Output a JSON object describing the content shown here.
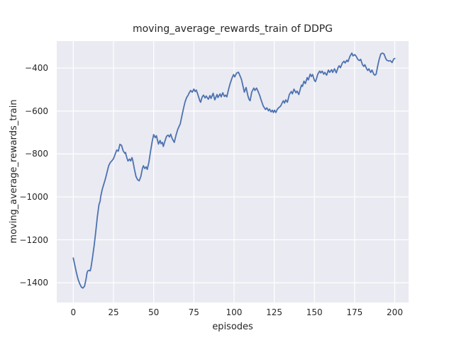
{
  "colors": {
    "figure_background": "#ffffff",
    "axes_background": "#eaeaf2",
    "grid": "#ffffff",
    "line": "#4c72b0",
    "text": "#262626"
  },
  "chart_data": {
    "type": "line",
    "title": "moving_average_rewards_train of DDPG",
    "xlabel": "episodes",
    "ylabel": "moving_average_rewards_train",
    "grid": true,
    "legend_position": "none",
    "xlim": [
      -10.3,
      208.6
    ],
    "ylim": [
      -1492,
      -274
    ],
    "xticks": [
      {
        "value": 0,
        "label": "0"
      },
      {
        "value": 25,
        "label": "25"
      },
      {
        "value": 50,
        "label": "50"
      },
      {
        "value": 75,
        "label": "75"
      },
      {
        "value": 100,
        "label": "100"
      },
      {
        "value": 125,
        "label": "125"
      },
      {
        "value": 150,
        "label": "150"
      },
      {
        "value": 175,
        "label": "175"
      },
      {
        "value": 200,
        "label": "200"
      }
    ],
    "yticks": [
      {
        "value": -400,
        "label": "−400"
      },
      {
        "value": -600,
        "label": "−600"
      },
      {
        "value": -800,
        "label": "−800"
      },
      {
        "value": -1000,
        "label": "−1000"
      },
      {
        "value": -1200,
        "label": "−1200"
      },
      {
        "value": -1400,
        "label": "−1400"
      }
    ],
    "series": [
      {
        "name": "moving_average_rewards_train",
        "color": "#4c72b0",
        "x": [
          0,
          1,
          2,
          3,
          4,
          5,
          6,
          7,
          8,
          8.5,
          9,
          10,
          10.5,
          11,
          12,
          13,
          14,
          15,
          16,
          16.7,
          17,
          18,
          19,
          20,
          21,
          22,
          23,
          24,
          25,
          26,
          27,
          28,
          29,
          30,
          31,
          32,
          32.5,
          33,
          34,
          35,
          35.7,
          36.5,
          37,
          38,
          39,
          40,
          41,
          42,
          43,
          43.6,
          44.5,
          45.3,
          46,
          47,
          48,
          49,
          50,
          51,
          51.7,
          53,
          54,
          54.6,
          55.4,
          56,
          57,
          58,
          59,
          59.8,
          60.6,
          61.5,
          62.8,
          64,
          65,
          66,
          66.5,
          67.5,
          68.5,
          69.5,
          70.5,
          71.3,
          72,
          73,
          74,
          75,
          75.8,
          76.5,
          77.5,
          78.7,
          79.2,
          80.2,
          81,
          82,
          82.7,
          84,
          85,
          85.7,
          87,
          88,
          89.4,
          90,
          91.3,
          92,
          93,
          94,
          94.8,
          95.5,
          96.7,
          97.5,
          98.7,
          99.7,
          100.4,
          101.6,
          102.7,
          103.4,
          104.6,
          105.6,
          106.4,
          107.5,
          108.6,
          109.3,
          110,
          111,
          112.3,
          113,
          114,
          115,
          116,
          117,
          118.2,
          119.6,
          120.4,
          121.4,
          122.1,
          123,
          123.8,
          124.5,
          125.2,
          126,
          127,
          128,
          129,
          130,
          130.7,
          131.4,
          132.2,
          133.2,
          134.4,
          135.6,
          136.3,
          137.3,
          138.5,
          139.2,
          140.3,
          141.5,
          142,
          142.6,
          143.5,
          144.4,
          145.5,
          146.2,
          147.4,
          148.1,
          148.9,
          149.9,
          150.6,
          151.4,
          152.1,
          153.3,
          154,
          154.8,
          155.8,
          156.5,
          157.6,
          158.7,
          159.5,
          160.7,
          161.4,
          162.5,
          163.6,
          164.7,
          165.4,
          166.2,
          167.4,
          168.4,
          169.1,
          170.2,
          170.9,
          172.1,
          173.3,
          174,
          175.1,
          176,
          177,
          178,
          178.8,
          179.9,
          180.7,
          181.4,
          182.5,
          183.2,
          183.9,
          185,
          185.8,
          186.9,
          187.6,
          188.4,
          189.4,
          190.3,
          191.3,
          192.4,
          193.3,
          194.3,
          195,
          196.2,
          197.2,
          198.3,
          199.4,
          200
        ],
        "y": [
          -1285,
          -1320,
          -1355,
          -1385,
          -1405,
          -1420,
          -1425,
          -1416,
          -1380,
          -1355,
          -1345,
          -1342,
          -1345,
          -1330,
          -1280,
          -1225,
          -1160,
          -1090,
          -1035,
          -1020,
          -1000,
          -965,
          -940,
          -915,
          -885,
          -855,
          -840,
          -832,
          -822,
          -802,
          -782,
          -787,
          -755,
          -760,
          -785,
          -797,
          -793,
          -810,
          -833,
          -824,
          -833,
          -817,
          -830,
          -870,
          -905,
          -920,
          -925,
          -905,
          -868,
          -855,
          -868,
          -860,
          -872,
          -840,
          -790,
          -745,
          -710,
          -724,
          -715,
          -754,
          -737,
          -752,
          -746,
          -765,
          -740,
          -718,
          -712,
          -721,
          -708,
          -728,
          -746,
          -710,
          -685,
          -668,
          -661,
          -625,
          -590,
          -558,
          -537,
          -528,
          -517,
          -504,
          -512,
          -498,
          -509,
          -502,
          -523,
          -552,
          -559,
          -534,
          -526,
          -539,
          -530,
          -545,
          -528,
          -541,
          -517,
          -548,
          -523,
          -537,
          -520,
          -534,
          -515,
          -532,
          -526,
          -534,
          -496,
          -474,
          -447,
          -430,
          -441,
          -423,
          -419,
          -430,
          -452,
          -485,
          -512,
          -490,
          -528,
          -545,
          -552,
          -512,
          -493,
          -504,
          -493,
          -509,
          -528,
          -552,
          -577,
          -593,
          -585,
          -599,
          -591,
          -604,
          -596,
          -607,
          -596,
          -607,
          -591,
          -583,
          -577,
          -561,
          -552,
          -563,
          -548,
          -559,
          -523,
          -509,
          -520,
          -498,
          -515,
          -507,
          -523,
          -490,
          -479,
          -485,
          -461,
          -472,
          -444,
          -455,
          -428,
          -439,
          -430,
          -455,
          -463,
          -447,
          -428,
          -414,
          -422,
          -414,
          -428,
          -420,
          -433,
          -409,
          -420,
          -407,
          -420,
          -403,
          -422,
          -398,
          -389,
          -398,
          -376,
          -368,
          -376,
          -363,
          -370,
          -345,
          -330,
          -343,
          -337,
          -345,
          -359,
          -365,
          -359,
          -384,
          -392,
          -384,
          -403,
          -411,
          -403,
          -420,
          -409,
          -428,
          -433,
          -428,
          -389,
          -359,
          -334,
          -330,
          -334,
          -354,
          -363,
          -367,
          -365,
          -374,
          -357,
          -355
        ]
      }
    ]
  }
}
